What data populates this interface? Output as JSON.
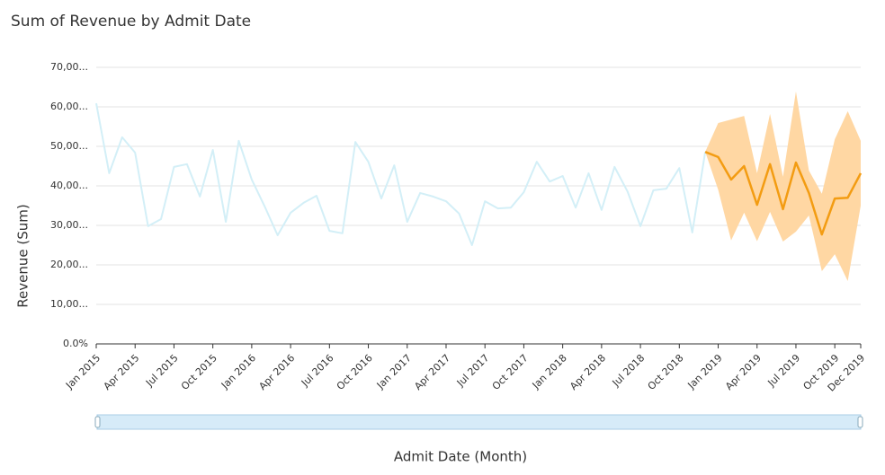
{
  "chart_data": {
    "type": "line",
    "title": "Sum of Revenue by Admit Date",
    "x_label": "Admit Date (Month)",
    "y_label": "Revenue (Sum)",
    "categories": [
      "Jan 2015",
      null,
      null,
      "Apr 2015",
      null,
      null,
      "Jul 2015",
      null,
      null,
      "Oct 2015",
      null,
      null,
      "Jan 2016",
      null,
      null,
      "Apr 2016",
      null,
      null,
      "Jul 2016",
      null,
      null,
      "Oct 2016",
      null,
      null,
      "Jan 2017",
      null,
      null,
      "Apr 2017",
      null,
      null,
      "Jul 2017",
      null,
      null,
      "Oct 2017",
      null,
      null,
      "Jan 2018",
      null,
      null,
      "Apr 2018",
      null,
      null,
      "Jul 2018",
      null,
      null,
      "Oct 2018",
      null,
      null,
      "Jan 2019",
      null,
      null,
      "Apr 2019",
      null,
      null,
      "Jul 2019",
      null,
      null,
      "Oct 2019",
      null,
      "Dec 2019"
    ],
    "ylim": [
      0,
      70000
    ],
    "yticks": [
      {
        "value": 0,
        "label": "0.0%"
      },
      {
        "value": 10000,
        "label": "10,00..."
      },
      {
        "value": 20000,
        "label": "20,00..."
      },
      {
        "value": 30000,
        "label": "30,00..."
      },
      {
        "value": 40000,
        "label": "40,00..."
      },
      {
        "value": 50000,
        "label": "50,00..."
      },
      {
        "value": 60000,
        "label": "60,00..."
      },
      {
        "value": 70000,
        "label": "70,00..."
      }
    ],
    "grid": true,
    "series": [
      {
        "color": "#d3eff7",
        "values": [
          60900,
          43200,
          52300,
          48400,
          29800,
          31600,
          44800,
          45500,
          37300,
          49100,
          30900,
          51400,
          41600,
          34800,
          27500,
          33200,
          35700,
          37500,
          28600,
          28000,
          51100,
          46100,
          36800,
          45200,
          30900,
          38200,
          37300,
          36100,
          33000,
          25000,
          36100,
          34300,
          34500,
          38400,
          46100,
          41100,
          42500,
          34500,
          43200,
          33900,
          44800,
          38600,
          29800,
          38900,
          39300,
          44500,
          28200,
          48600,
          null,
          null,
          null,
          null,
          null,
          null,
          null,
          null,
          null,
          null,
          null,
          null
        ]
      },
      {
        "color": "#f39c12",
        "band_color": "#ffd7a3",
        "values": [
          null,
          null,
          null,
          null,
          null,
          null,
          null,
          null,
          null,
          null,
          null,
          null,
          null,
          null,
          null,
          null,
          null,
          null,
          null,
          null,
          null,
          null,
          null,
          null,
          null,
          null,
          null,
          null,
          null,
          null,
          null,
          null,
          null,
          null,
          null,
          null,
          null,
          null,
          null,
          null,
          null,
          null,
          null,
          null,
          null,
          null,
          null,
          48600,
          47300,
          41600,
          45000,
          35200,
          45500,
          34100,
          45900,
          38200,
          27700,
          36800,
          37000,
          43200
        ],
        "lower": [
          null,
          null,
          null,
          null,
          null,
          null,
          null,
          null,
          null,
          null,
          null,
          null,
          null,
          null,
          null,
          null,
          null,
          null,
          null,
          null,
          null,
          null,
          null,
          null,
          null,
          null,
          null,
          null,
          null,
          null,
          null,
          null,
          null,
          null,
          null,
          null,
          null,
          null,
          null,
          null,
          null,
          null,
          null,
          null,
          null,
          null,
          null,
          48600,
          39000,
          26200,
          33200,
          26000,
          33400,
          25900,
          28400,
          32500,
          18400,
          22700,
          15900,
          35000
        ],
        "upper": [
          null,
          null,
          null,
          null,
          null,
          null,
          null,
          null,
          null,
          null,
          null,
          null,
          null,
          null,
          null,
          null,
          null,
          null,
          null,
          null,
          null,
          null,
          null,
          null,
          null,
          null,
          null,
          null,
          null,
          null,
          null,
          null,
          null,
          null,
          null,
          null,
          null,
          null,
          null,
          null,
          null,
          null,
          null,
          null,
          null,
          null,
          null,
          48600,
          55900,
          56800,
          57700,
          43200,
          58200,
          42300,
          63900,
          43900,
          38000,
          51800,
          58900,
          51400
        ]
      }
    ]
  }
}
